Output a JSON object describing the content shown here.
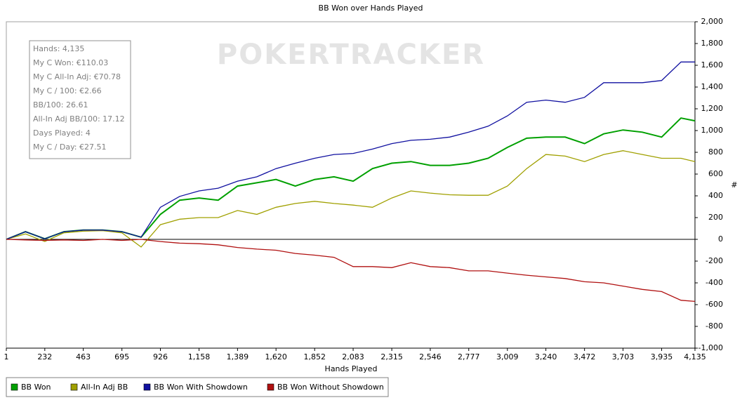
{
  "chart_data": {
    "type": "line",
    "title": "BB Won over Hands Played",
    "x_label": "Hands Played",
    "y_label": "#",
    "watermark": "POKERTRACKER",
    "stats": [
      "Hands: 4,135",
      "My C Won: €110.03",
      "My C All-In Adj: €70.78",
      "My C / 100: €2.66",
      "BB/100: 26.61",
      "All-In Adj BB/100: 17.12",
      "Days Played: 4",
      "My C / Day: €27.51"
    ],
    "x": [
      1,
      116,
      232,
      347,
      463,
      579,
      695,
      810,
      926,
      1042,
      1158,
      1273,
      1389,
      1505,
      1620,
      1736,
      1852,
      1968,
      2083,
      2199,
      2315,
      2430,
      2546,
      2662,
      2777,
      2893,
      3009,
      3125,
      3240,
      3356,
      3472,
      3587,
      3703,
      3819,
      3935,
      4051,
      4135
    ],
    "series": [
      {
        "name": "BB Won",
        "color": "#00a000",
        "values": [
          0,
          70,
          5,
          70,
          85,
          85,
          70,
          20,
          230,
          360,
          380,
          360,
          490,
          520,
          550,
          490,
          550,
          575,
          535,
          650,
          700,
          715,
          680,
          680,
          700,
          745,
          845,
          930,
          940,
          940,
          880,
          970,
          1005,
          985,
          940,
          1115,
          1090
        ]
      },
      {
        "name": "All-In Adj BB",
        "color": "#a0a000",
        "values": [
          0,
          50,
          -20,
          60,
          75,
          80,
          60,
          -70,
          135,
          185,
          200,
          200,
          265,
          230,
          295,
          330,
          350,
          330,
          315,
          295,
          380,
          445,
          425,
          410,
          405,
          405,
          490,
          650,
          780,
          765,
          715,
          780,
          815,
          780,
          745,
          745,
          715
        ]
      },
      {
        "name": "BB Won With Showdown",
        "color": "#1010a0",
        "values": [
          0,
          70,
          5,
          70,
          85,
          85,
          70,
          20,
          295,
          395,
          445,
          470,
          535,
          575,
          650,
          700,
          745,
          780,
          790,
          830,
          880,
          910,
          920,
          940,
          985,
          1040,
          1135,
          1260,
          1280,
          1260,
          1305,
          1440,
          1440,
          1440,
          1460,
          1630,
          1630
        ]
      },
      {
        "name": "BB Won Without Showdown",
        "color": "#b01010",
        "values": [
          0,
          -5,
          -10,
          -5,
          -10,
          0,
          -10,
          0,
          -20,
          -35,
          -40,
          -50,
          -75,
          -90,
          -100,
          -130,
          -145,
          -165,
          -250,
          -250,
          -260,
          -215,
          -250,
          -260,
          -290,
          -290,
          -310,
          -330,
          -345,
          -360,
          -390,
          -400,
          -430,
          -460,
          -480,
          -560,
          -570
        ]
      }
    ],
    "xlim": [
      1,
      4135
    ],
    "xticks": [
      1,
      232,
      463,
      695,
      926,
      {
        "value": 1158,
        "label": "1,158"
      },
      {
        "value": 1389,
        "label": "1,389"
      },
      {
        "value": 1620,
        "label": "1,620"
      },
      {
        "value": 1852,
        "label": "1,852"
      },
      {
        "value": 2083,
        "label": "2,083"
      },
      {
        "value": 2315,
        "label": "2,315"
      },
      {
        "value": 2546,
        "label": "2,546"
      },
      {
        "value": 2777,
        "label": "2,777"
      },
      {
        "value": 3009,
        "label": "3,009"
      },
      {
        "value": 3240,
        "label": "3,240"
      },
      {
        "value": 3472,
        "label": "3,472"
      },
      {
        "value": 3703,
        "label": "3,703"
      },
      {
        "value": 3935,
        "label": "3,935"
      },
      {
        "value": 4135,
        "label": "4,135"
      }
    ],
    "ylim": [
      -1000,
      2000
    ],
    "yticks": [
      {
        "value": -1000,
        "label": "-1,000"
      },
      -800,
      -600,
      -400,
      -200,
      0,
      200,
      400,
      600,
      800,
      {
        "value": 1000,
        "label": "1,000"
      },
      {
        "value": 1200,
        "label": "1,200"
      },
      {
        "value": 1400,
        "label": "1,400"
      },
      {
        "value": 1600,
        "label": "1,600"
      },
      {
        "value": 1800,
        "label": "1,800"
      },
      {
        "value": 2000,
        "label": "2,000"
      }
    ],
    "grid": false,
    "legend": "bottom"
  }
}
